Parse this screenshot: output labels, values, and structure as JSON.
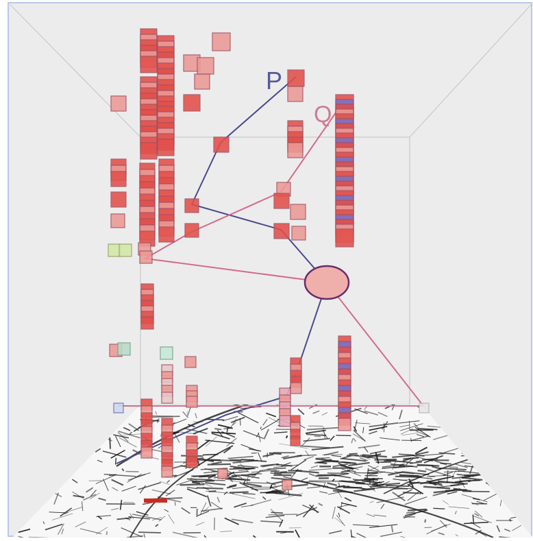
{
  "labels": {
    "p": "P",
    "q": "Q"
  },
  "colors": {
    "background": "#ececec",
    "frame_border": "#b8c8e8",
    "box_edges": "#c9c9c9",
    "path_p": "#4a4a8c",
    "path_q": "#d46a8c",
    "cube_red": "#e2504a",
    "cube_pink": "#eb9a96",
    "cube_blue": "#7a72c8",
    "cube_green": "#d4e8a8",
    "ellipse_fill": "#efb0ac",
    "ellipse_stroke": "#6a2a6a",
    "map_ink": "#1a1a1a"
  },
  "icons": {
    "meeting_point": "ellipse-node",
    "trace_marker": "square-cube"
  }
}
